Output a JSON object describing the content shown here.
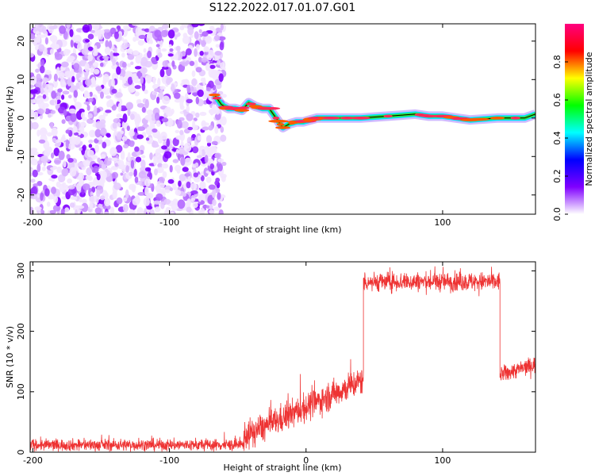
{
  "title": "S122.2022.017.01.07.G01",
  "chart_data": [
    {
      "type": "heatmap",
      "xlabel": "Height of straight line (km)",
      "ylabel": "Frequency (Hz)",
      "xlim": [
        -202,
        168
      ],
      "ylim": [
        -25,
        24.5
      ],
      "x_ticks": [
        -200,
        -100,
        100
      ],
      "y_ticks": [
        -20,
        -10,
        0,
        10,
        20
      ],
      "noise_region_x": [
        -202,
        -60
      ],
      "signal_track": {
        "x": [
          -67,
          -62,
          -57,
          -52,
          -47,
          -42,
          -37,
          -32,
          -27,
          -22,
          -17,
          -12,
          -7,
          -2,
          3,
          8,
          15,
          25,
          40,
          60,
          80,
          90,
          100,
          120,
          140,
          160,
          168
        ],
        "y": [
          6,
          3.5,
          2.5,
          2.5,
          2,
          4,
          3,
          2.5,
          2.5,
          0,
          -2.5,
          -1.5,
          -1,
          -1,
          -0.5,
          0,
          0,
          0,
          0,
          0.5,
          1,
          0.5,
          0.5,
          -0.5,
          0,
          0,
          1
        ]
      },
      "colorbar": {
        "label": "Normalized spectral amplitude",
        "range": [
          0,
          1
        ],
        "ticks": [
          "0.0",
          "0.2",
          "0.4",
          "0.6",
          "0.8"
        ],
        "colormap": [
          "#ffffff",
          "#8000ff",
          "#0000ff",
          "#00ffff",
          "#00ff00",
          "#ffff00",
          "#ff0000",
          "#ff0080"
        ]
      }
    },
    {
      "type": "line",
      "xlabel": "Height of straight line (km)",
      "ylabel": "SNR (10 * v/v)",
      "xlim": [
        -202,
        168
      ],
      "ylim": [
        0,
        315
      ],
      "x_ticks": [
        -200,
        -100,
        0,
        100
      ],
      "y_ticks": [
        0,
        100,
        200,
        300
      ],
      "line_color": "#ee3333",
      "segments": [
        {
          "x": [
            -202,
            -46
          ],
          "mean": [
            12,
            12
          ],
          "noise": 5
        },
        {
          "x": [
            -46,
            42
          ],
          "mean": [
            25,
            120
          ],
          "noise": 12
        },
        {
          "x": [
            42,
            142
          ],
          "mean": [
            282,
            282
          ],
          "noise": 8
        },
        {
          "x": [
            142,
            168
          ],
          "mean": [
            128,
            145
          ],
          "noise": 7
        }
      ]
    }
  ]
}
